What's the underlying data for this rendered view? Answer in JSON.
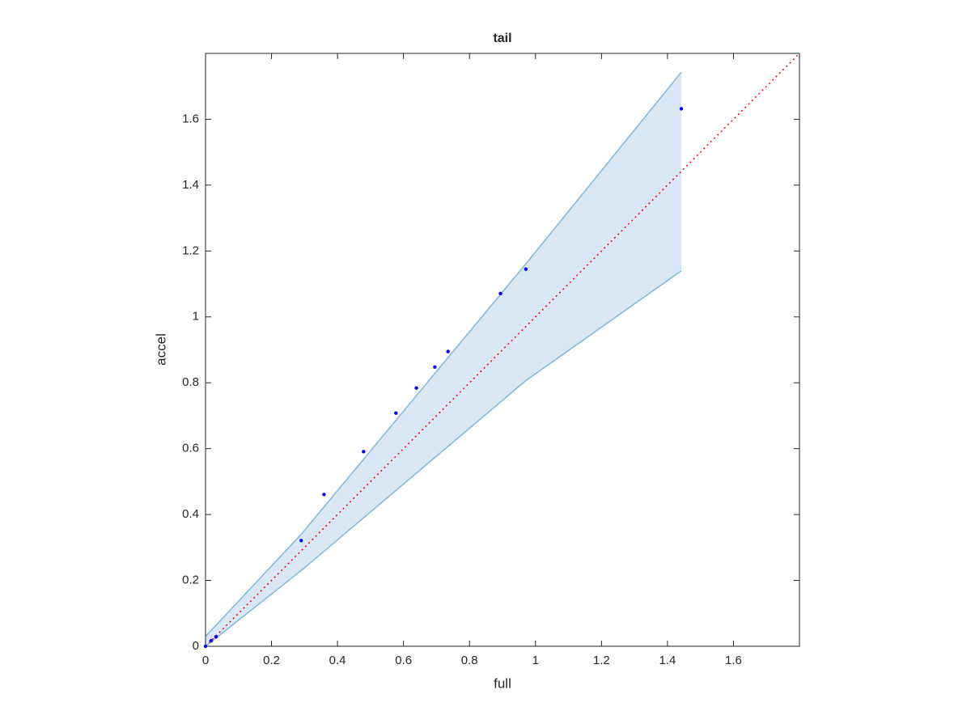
{
  "chart_data": {
    "type": "scatter",
    "title": "tail",
    "x_label": "full",
    "y_label": "accel",
    "x": [
      0,
      0.017,
      0.032,
      0.29,
      0.359,
      0.479,
      0.577,
      0.639,
      0.695,
      0.735,
      0.894,
      0.971,
      1.442
    ],
    "values": [
      0,
      0.017,
      0.029,
      0.321,
      0.461,
      0.591,
      0.708,
      0.784,
      0.848,
      0.895,
      1.071,
      1.145,
      1.632
    ],
    "color": "#0000ff",
    "band": {
      "x": [
        0,
        0.29,
        0.97,
        1.442
      ],
      "upper": [
        0.03,
        0.34,
        1.16,
        1.743
      ],
      "lower": [
        0,
        0.23,
        0.806,
        1.14
      ],
      "color": "#7fb8dd",
      "fill": "#d9e8f4"
    },
    "reference_line": {
      "x": [
        0,
        1.8
      ],
      "values": [
        0,
        1.8
      ],
      "color": "#ff0000"
    },
    "xlim": [
      0,
      1.8
    ],
    "ylim": [
      0,
      1.8
    ],
    "xticks": [
      0,
      0.2,
      0.4,
      0.6,
      0.8,
      1,
      1.2,
      1.4,
      1.6
    ],
    "yticks": [
      0,
      0.2,
      0.4,
      0.6,
      0.8,
      1,
      1.2,
      1.4,
      1.6
    ]
  }
}
